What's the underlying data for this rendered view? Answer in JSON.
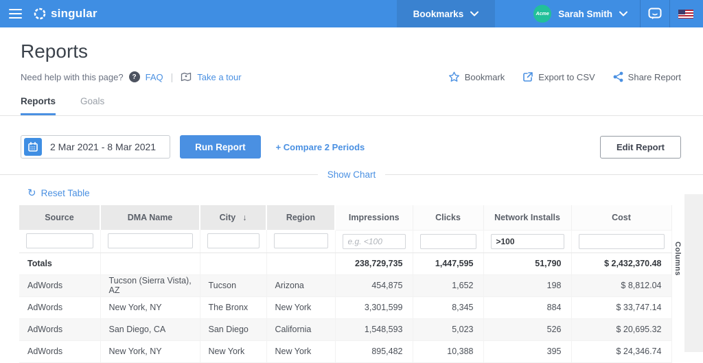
{
  "topbar": {
    "brand": "singular",
    "bookmarks_label": "Bookmarks",
    "account_badge": "Acme",
    "user_name": "Sarah Smith"
  },
  "header": {
    "title": "Reports",
    "help_text": "Need help with this page?",
    "faq_label": "FAQ",
    "tour_label": "Take a tour",
    "actions": {
      "bookmark": "Bookmark",
      "export": "Export to CSV",
      "share": "Share Report"
    }
  },
  "tabs": [
    {
      "label": "Reports",
      "active": true
    },
    {
      "label": "Goals",
      "active": false
    }
  ],
  "toolbar": {
    "date_range": "2 Mar 2021 - 8 Mar 2021",
    "run_report": "Run Report",
    "compare": "+ Compare 2 Periods",
    "edit_report": "Edit Report",
    "show_chart": "Show Chart",
    "reset_table": "Reset Table"
  },
  "icons": {
    "sort_desc": "↓",
    "reset": "↻",
    "pipe": "|"
  },
  "colors": {
    "topbar_blue": "#3f8ee3",
    "accent_blue": "#4a90e2",
    "avatar_green": "#22c09a",
    "header_gray": "#e9e9e9",
    "row_alt_gray": "#f7f7f7"
  },
  "table": {
    "columns_strip_label": "Columns",
    "columns": [
      {
        "label": "Source",
        "type": "dimension",
        "sort": null,
        "filter": {
          "value": "",
          "placeholder": ""
        }
      },
      {
        "label": "DMA Name",
        "type": "dimension",
        "sort": null,
        "filter": {
          "value": "",
          "placeholder": ""
        }
      },
      {
        "label": "City",
        "type": "dimension",
        "sort": "desc",
        "filter": {
          "value": "",
          "placeholder": ""
        }
      },
      {
        "label": "Region",
        "type": "dimension",
        "sort": null,
        "filter": {
          "value": "",
          "placeholder": ""
        }
      },
      {
        "label": "Impressions",
        "type": "metric",
        "sort": null,
        "filter": {
          "value": "",
          "placeholder": "e.g. <100"
        }
      },
      {
        "label": "Clicks",
        "type": "metric",
        "sort": null,
        "filter": {
          "value": "",
          "placeholder": ""
        }
      },
      {
        "label": "Network Installs",
        "type": "metric",
        "sort": null,
        "filter": {
          "value": ">100",
          "placeholder": ""
        }
      },
      {
        "label": "Cost",
        "type": "metric",
        "sort": null,
        "filter": {
          "value": "",
          "placeholder": ""
        }
      }
    ],
    "totals": [
      "Totals",
      "",
      "",
      "",
      "238,729,735",
      "1,447,595",
      "51,790",
      "$ 2,432,370.48"
    ],
    "rows": [
      [
        "AdWords",
        "Tucson (Sierra Vista), AZ",
        "Tucson",
        "Arizona",
        "454,875",
        "1,652",
        "198",
        "$ 8,812.04"
      ],
      [
        "AdWords",
        "New York, NY",
        "The Bronx",
        "New York",
        "3,301,599",
        "8,345",
        "884",
        "$ 33,747.14"
      ],
      [
        "AdWords",
        "San Diego, CA",
        "San Diego",
        "California",
        "1,548,593",
        "5,023",
        "526",
        "$ 20,695.32"
      ],
      [
        "AdWords",
        "New York, NY",
        "New York",
        "New York",
        "895,482",
        "10,388",
        "395",
        "$ 24,346.74"
      ]
    ]
  }
}
